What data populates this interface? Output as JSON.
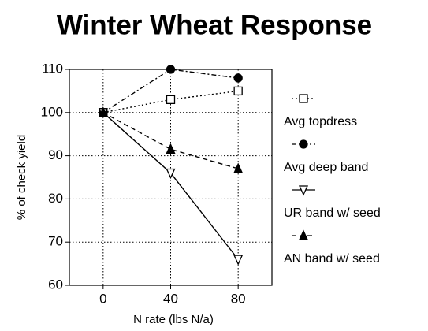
{
  "chart_data": {
    "type": "line",
    "title": "Winter Wheat Response",
    "xlabel": "N rate (lbs N/a)",
    "ylabel": "% of check yield",
    "x": [
      0,
      40,
      80
    ],
    "xlim": [
      -20,
      100
    ],
    "xticks": [
      0,
      40,
      80
    ],
    "ylim": [
      60,
      110
    ],
    "yticks": [
      60,
      70,
      80,
      90,
      100,
      110
    ],
    "grid": true,
    "legend": "right",
    "series": [
      {
        "name": "Avg topdress",
        "color": "#000000",
        "marker": "square-open",
        "dash": "2,3",
        "values": [
          100,
          103,
          105
        ]
      },
      {
        "name": "Avg deep band",
        "color": "#000000",
        "marker": "circle",
        "dash": "6,3,2,3",
        "values": [
          100,
          110,
          108
        ]
      },
      {
        "name": "UR band w/ seed",
        "color": "#000000",
        "marker": "triangle-down-open",
        "dash": "none",
        "values": [
          100,
          86,
          66
        ]
      },
      {
        "name": "AN band w/ seed",
        "color": "#000000",
        "marker": "triangle-up",
        "dash": "6,4",
        "values": [
          100,
          91.5,
          87
        ]
      }
    ]
  }
}
